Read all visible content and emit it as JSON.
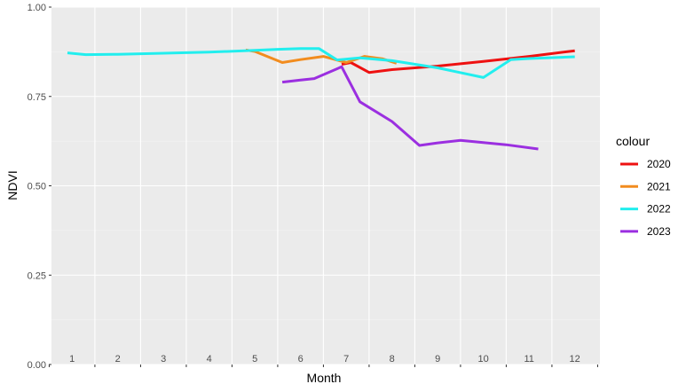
{
  "chart_data": {
    "type": "line",
    "xlabel": "Month",
    "ylabel": "NDVI",
    "ylim": [
      0,
      1
    ],
    "xlim": [
      0.55,
      12.55
    ],
    "yticks": [
      0.0,
      0.25,
      0.5,
      0.75,
      1.0
    ],
    "ytick_labels": [
      "0.00",
      "0.25",
      "0.50",
      "0.75",
      "1.00"
    ],
    "xtick_labels": [
      "1",
      "2",
      "3",
      "4",
      "5",
      "6",
      "7",
      "8",
      "9",
      "10",
      "11",
      "12"
    ],
    "grid": true,
    "legend_title": "colour",
    "legend_position": "right",
    "series": [
      {
        "name": "2020",
        "color": "#ee1111",
        "x": [
          6.9,
          7.1,
          7.5,
          8.0,
          9.0,
          10.0,
          11.0,
          12.0
        ],
        "y": [
          0.84,
          0.845,
          0.817,
          0.825,
          0.835,
          0.848,
          0.862,
          0.878
        ]
      },
      {
        "name": "2021",
        "color": "#f28c1e",
        "x": [
          4.8,
          5.0,
          5.6,
          6.0,
          6.5,
          7.0,
          7.4,
          7.8,
          8.1
        ],
        "y": [
          0.88,
          0.876,
          0.845,
          0.853,
          0.862,
          0.845,
          0.862,
          0.855,
          0.843
        ]
      },
      {
        "name": "2022",
        "color": "#22eeee",
        "x": [
          0.9,
          1.3,
          2.0,
          3.0,
          4.0,
          5.0,
          5.5,
          6.0,
          6.4,
          6.8,
          7.3,
          8.0,
          9.0,
          10.0,
          10.6,
          11.0,
          12.0
        ],
        "y": [
          0.872,
          0.867,
          0.868,
          0.871,
          0.874,
          0.879,
          0.882,
          0.884,
          0.884,
          0.852,
          0.858,
          0.85,
          0.83,
          0.803,
          0.853,
          0.856,
          0.861
        ]
      },
      {
        "name": "2023",
        "color": "#9b2fe0",
        "x": [
          5.6,
          6.0,
          6.3,
          6.9,
          7.3,
          8.0,
          8.6,
          9.0,
          9.5,
          10.0,
          10.5,
          11.2
        ],
        "y": [
          0.79,
          0.796,
          0.8,
          0.833,
          0.735,
          0.68,
          0.613,
          0.62,
          0.627,
          0.621,
          0.615,
          0.603
        ]
      }
    ]
  }
}
